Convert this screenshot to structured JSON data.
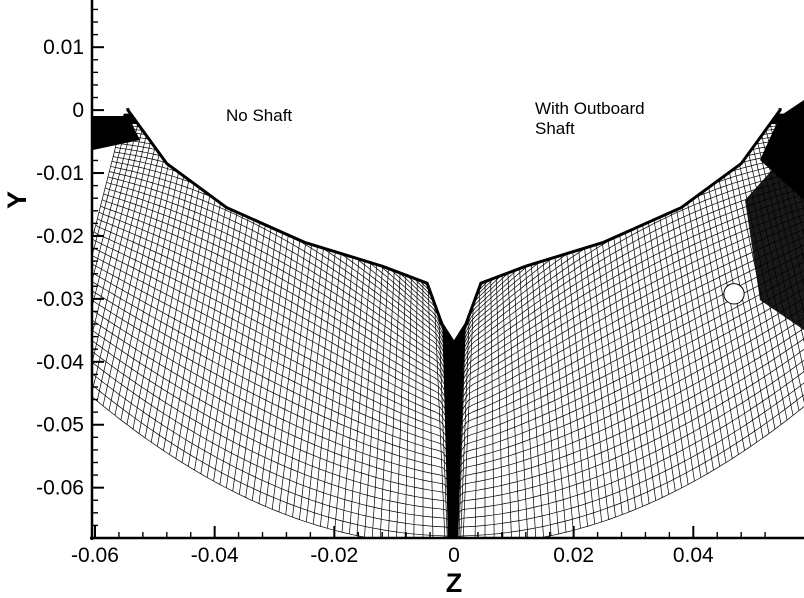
{
  "chart_data": {
    "type": "mesh",
    "xlabel": "Z",
    "ylabel": "Y",
    "xlim": [
      -0.0605,
      0.0585
    ],
    "ylim": [
      -0.068,
      0.0175
    ],
    "x_ticks": [
      -0.06,
      -0.04,
      -0.02,
      0,
      0.02,
      0.04
    ],
    "x_tick_labels": [
      "-0.06",
      "-0.04",
      "-0.02",
      "0",
      "0.02",
      "0.04"
    ],
    "y_ticks": [
      0.01,
      0,
      -0.01,
      -0.02,
      -0.03,
      -0.04,
      -0.05,
      -0.06
    ],
    "y_tick_labels": [
      "0.01",
      "0",
      "-0.01",
      "-0.02",
      "-0.03",
      "-0.04",
      "-0.05",
      "-0.06"
    ],
    "grid": false,
    "annotations": {
      "left": "No Shaft",
      "right_line1": "With Outboard",
      "right_line2": "Shaft"
    },
    "hull_outline": [
      [
        -0.0545,
        0.0
      ],
      [
        -0.048,
        -0.0085
      ],
      [
        -0.038,
        -0.0155
      ],
      [
        -0.025,
        -0.021
      ],
      [
        -0.012,
        -0.0248
      ],
      [
        -0.0045,
        -0.0275
      ],
      [
        -0.002,
        -0.034
      ],
      [
        0,
        -0.037
      ],
      [
        0.002,
        -0.034
      ],
      [
        0.0045,
        -0.0275
      ],
      [
        0.012,
        -0.0248
      ],
      [
        0.025,
        -0.021
      ],
      [
        0.038,
        -0.0155
      ],
      [
        0.048,
        -0.0085
      ],
      [
        0.0545,
        0.0
      ]
    ],
    "shaft": {
      "z": 0.0468,
      "y": -0.0292,
      "r": 0.0017
    },
    "colors": {
      "mesh": "#000000",
      "background": "#ffffff"
    }
  }
}
